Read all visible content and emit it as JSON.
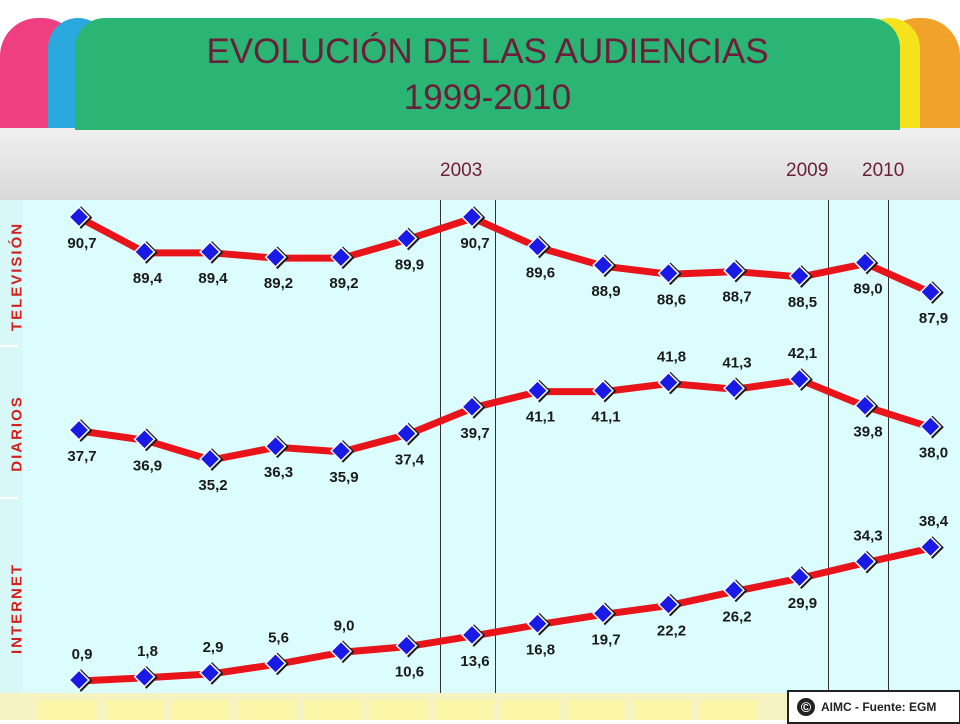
{
  "title": {
    "line1": "EVOLUCIÓN DE LAS AUDIENCIAS",
    "line2": "1999-2010"
  },
  "year_markers": [
    "2003",
    "2009",
    "2010"
  ],
  "credit": {
    "symbol": "©",
    "text": "AIMC - Fuente: EGM"
  },
  "colors": {
    "header": "#2bb574",
    "line": "#e8141a",
    "marker": "#1a1ae6",
    "title_text": "#6b1f3a",
    "section_label": "#d41f1f",
    "panel": "#dcfdfd"
  },
  "chart_data": {
    "type": "line",
    "title": "EVOLUCIÓN DE LAS AUDIENCIAS 1999-2010",
    "point_count": 14,
    "series": [
      {
        "name": "TELEVISIÓN",
        "values": [
          90.7,
          89.4,
          89.4,
          89.2,
          89.2,
          89.9,
          90.7,
          89.6,
          88.9,
          88.6,
          88.7,
          88.5,
          89.0,
          87.9
        ],
        "labels": [
          "90,7",
          "89,4",
          "89,4",
          "89,2",
          "89,2",
          "89,9",
          "90,7",
          "89,6",
          "88,9",
          "88,6",
          "88,7",
          "88,5",
          "89,0",
          "87,9"
        ]
      },
      {
        "name": "DIARIOS",
        "values": [
          37.7,
          36.9,
          35.2,
          36.3,
          35.9,
          37.4,
          39.7,
          41.1,
          41.1,
          41.8,
          41.3,
          42.1,
          39.8,
          38.0
        ],
        "labels": [
          "37,7",
          "36,9",
          "35,2",
          "36,3",
          "35,9",
          "37,4",
          "39,7",
          "41,1",
          "41,1",
          "41,8",
          "41,3",
          "42,1",
          "39,8",
          "38,0"
        ]
      },
      {
        "name": "INTERNET",
        "values": [
          0.9,
          1.8,
          2.9,
          5.6,
          9.0,
          10.6,
          13.6,
          16.8,
          19.7,
          22.2,
          26.2,
          29.9,
          34.3,
          38.4
        ],
        "labels": [
          "0,9",
          "1,8",
          "2,9",
          "5,6",
          "9,0",
          "10,6",
          "13,6",
          "16,8",
          "19,7",
          "22,2",
          "26,2",
          "29,9",
          "34,3",
          "38,4"
        ]
      }
    ]
  }
}
